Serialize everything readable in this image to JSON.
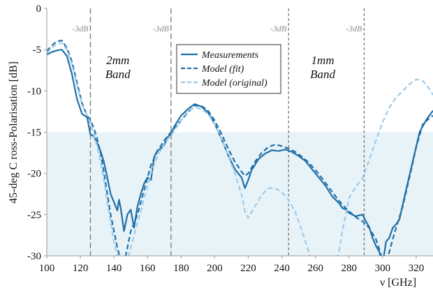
{
  "chart_data": {
    "type": "line",
    "xlabel": "ν [GHz]",
    "ylabel": "45-deg C ross-Polarisation [dB]",
    "xlim": [
      100,
      330
    ],
    "ylim": [
      -30,
      0
    ],
    "xticks": [
      100,
      120,
      140,
      160,
      180,
      200,
      220,
      240,
      260,
      280,
      300,
      320
    ],
    "yticks": [
      0,
      -5,
      -10,
      -15,
      -20,
      -25,
      -30
    ],
    "grid": false,
    "shaded_region": {
      "y_from": -30,
      "y_to": -15,
      "color": "#e8f3f8"
    },
    "vlines": [
      {
        "x": 126,
        "style": "longdash",
        "color": "#777777",
        "label": "-3dB"
      },
      {
        "x": 174,
        "style": "longdash",
        "color": "#777777",
        "label": "-3dB"
      },
      {
        "x": 244,
        "style": "shortdash",
        "color": "#777777",
        "label": "-3dB"
      },
      {
        "x": 289,
        "style": "shortdash",
        "color": "#777777",
        "label": "-3dB"
      }
    ],
    "band_labels": [
      {
        "x": 134,
        "text": "2mm\nBand"
      },
      {
        "x": 256,
        "text": "1mm\nBand"
      }
    ],
    "legend_position": "top-center",
    "series": [
      {
        "name": "Measurements",
        "style": "solid",
        "color": "#1f6fa8",
        "x": [
          100,
          103,
          106,
          109,
          112,
          115,
          118,
          121,
          124,
          126,
          128,
          130,
          132,
          134,
          136,
          138,
          140,
          142,
          143,
          144,
          146,
          148,
          150,
          152,
          154,
          156,
          158,
          160,
          162,
          164,
          166,
          168,
          170,
          172,
          174,
          176,
          180,
          184,
          188,
          192,
          196,
          200,
          204,
          208,
          212,
          216,
          218,
          220,
          222,
          226,
          230,
          234,
          238,
          242,
          246,
          250,
          254,
          258,
          262,
          266,
          270,
          274,
          276,
          278,
          280,
          284,
          288,
          290,
          292,
          294,
          296,
          298,
          300,
          302,
          304,
          306,
          308,
          310,
          314,
          318,
          322,
          326,
          330
        ],
        "values": [
          -5.6,
          -5.3,
          -5.1,
          -5.0,
          -5.8,
          -8.0,
          -11.0,
          -12.8,
          -13.2,
          -15.3,
          -15.5,
          -16.3,
          -17.3,
          -18.6,
          -20.5,
          -22.5,
          -23.5,
          -24.5,
          -23.2,
          -24.2,
          -27.0,
          -25.0,
          -24.4,
          -26.6,
          -24.0,
          -22.5,
          -21.2,
          -20.5,
          -20.8,
          -18.0,
          -17.2,
          -17.0,
          -16.5,
          -15.6,
          -15.2,
          -14.3,
          -13.0,
          -12.2,
          -11.6,
          -11.9,
          -12.6,
          -14.0,
          -15.8,
          -17.8,
          -19.5,
          -20.5,
          -21.8,
          -20.8,
          -19.6,
          -18.3,
          -17.6,
          -17.2,
          -17.3,
          -17.1,
          -17.4,
          -17.9,
          -18.5,
          -19.5,
          -20.5,
          -21.5,
          -22.8,
          -23.6,
          -24.2,
          -24.4,
          -24.8,
          -25.2,
          -25.0,
          -25.8,
          -26.5,
          -27.8,
          -28.8,
          -29.5,
          -31.0,
          -28.3,
          -27.8,
          -26.6,
          -26.2,
          -25.6,
          -22.0,
          -18.5,
          -15.0,
          -13.5,
          -12.4
        ]
      },
      {
        "name": "Model (fit)",
        "style": "dashed",
        "color": "#1f6fa8",
        "x": [
          100,
          103,
          106,
          109,
          112,
          115,
          118,
          121,
          124,
          126,
          128,
          130,
          132,
          134,
          136,
          138,
          140,
          142,
          144,
          146,
          148,
          150,
          152,
          154,
          156,
          158,
          160,
          162,
          166,
          170,
          174,
          180,
          184,
          188,
          192,
          196,
          200,
          204,
          208,
          212,
          216,
          218,
          220,
          224,
          228,
          232,
          236,
          240,
          244,
          248,
          252,
          256,
          260,
          264,
          268,
          272,
          276,
          280,
          284,
          288,
          292,
          296,
          298,
          300,
          302,
          304,
          306,
          308,
          312,
          316,
          320,
          324,
          328,
          330
        ],
        "values": [
          -5.2,
          -4.5,
          -4.0,
          -3.9,
          -4.8,
          -6.5,
          -9.0,
          -11.5,
          -13.0,
          -13.6,
          -14.5,
          -15.8,
          -17.5,
          -19.8,
          -22.5,
          -25.0,
          -27.0,
          -29.0,
          -30.5,
          -31.0,
          -29.0,
          -27.0,
          -26.0,
          -25.0,
          -23.5,
          -22.0,
          -20.5,
          -19.0,
          -17.3,
          -16.0,
          -15.0,
          -13.6,
          -12.6,
          -11.8,
          -11.8,
          -12.4,
          -13.6,
          -15.2,
          -17.0,
          -18.6,
          -19.8,
          -20.3,
          -20.0,
          -18.6,
          -17.5,
          -16.8,
          -16.5,
          -16.7,
          -17.0,
          -17.4,
          -18.0,
          -18.7,
          -19.6,
          -20.6,
          -21.7,
          -22.8,
          -23.8,
          -24.6,
          -25.3,
          -25.8,
          -26.6,
          -28.0,
          -29.2,
          -30.5,
          -31.0,
          -29.5,
          -28.0,
          -26.6,
          -24.0,
          -20.5,
          -16.8,
          -14.0,
          -13.3,
          -13.0
        ]
      },
      {
        "name": "Model (original)",
        "style": "dashed",
        "color": "#9fcbe8",
        "x": [
          100,
          103,
          106,
          109,
          112,
          115,
          118,
          121,
          124,
          126,
          128,
          130,
          132,
          134,
          136,
          138,
          140,
          142,
          144,
          146,
          148,
          150,
          152,
          154,
          156,
          158,
          160,
          162,
          166,
          170,
          174,
          180,
          184,
          188,
          192,
          196,
          200,
          204,
          208,
          212,
          216,
          218,
          220,
          224,
          228,
          232,
          236,
          240,
          244,
          248,
          252,
          256,
          258,
          264,
          272,
          274,
          276,
          278,
          280,
          284,
          288,
          292,
          296,
          300,
          304,
          308,
          312,
          316,
          320,
          324,
          328,
          330
        ],
        "values": [
          -5.4,
          -4.8,
          -4.3,
          -4.2,
          -5.0,
          -6.8,
          -9.3,
          -11.7,
          -13.0,
          -14.0,
          -15.3,
          -16.7,
          -18.6,
          -20.8,
          -23.5,
          -26.0,
          -28.3,
          -30.0,
          -31.0,
          -31.0,
          -30.5,
          -29.0,
          -27.5,
          -26.0,
          -24.6,
          -23.0,
          -21.6,
          -20.0,
          -17.9,
          -16.3,
          -15.4,
          -13.6,
          -12.4,
          -12.0,
          -12.2,
          -12.8,
          -14.0,
          -15.8,
          -17.8,
          -20.0,
          -22.6,
          -24.6,
          -25.4,
          -24.0,
          -22.6,
          -21.8,
          -21.8,
          -22.3,
          -23.2,
          -24.7,
          -27.0,
          -29.5,
          -31.0,
          -31.0,
          -31.0,
          -29.5,
          -27.0,
          -25.0,
          -23.0,
          -21.6,
          -20.6,
          -18.4,
          -16.0,
          -13.8,
          -12.0,
          -10.8,
          -10.0,
          -9.2,
          -8.6,
          -8.8,
          -9.8,
          -10.5
        ]
      }
    ]
  }
}
